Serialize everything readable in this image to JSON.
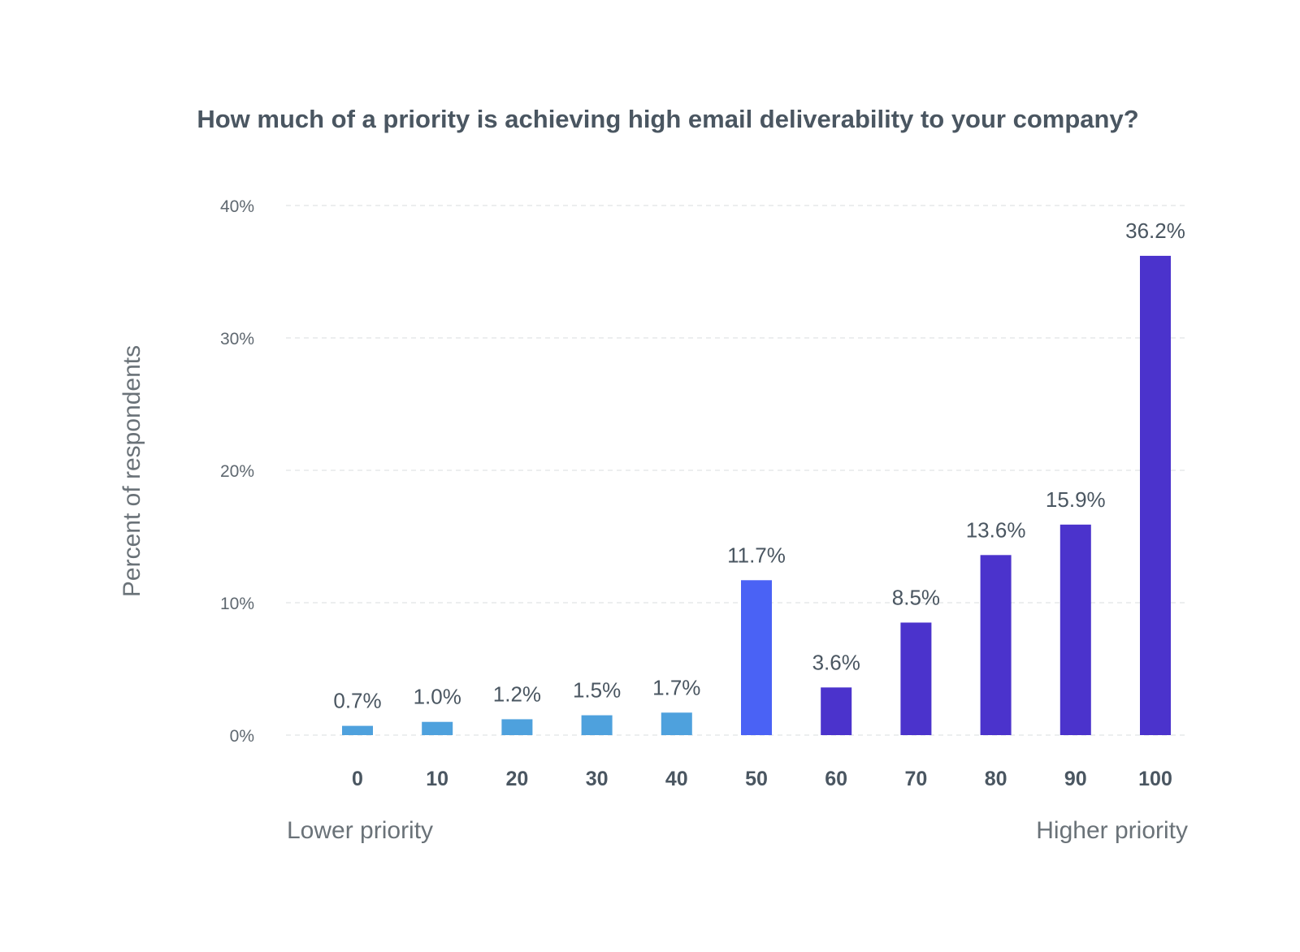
{
  "chart_data": {
    "type": "bar",
    "title": "How much of a priority is achieving high email deliverability to your company?",
    "ylabel": "Percent of respondents",
    "xlabel_left": "Lower priority",
    "xlabel_right": "Higher priority",
    "categories": [
      "0",
      "10",
      "20",
      "30",
      "40",
      "50",
      "60",
      "70",
      "80",
      "90",
      "100"
    ],
    "values": [
      0.7,
      1.0,
      1.2,
      1.5,
      1.7,
      11.7,
      3.6,
      8.5,
      13.6,
      15.9,
      36.2
    ],
    "data_labels": [
      "0.7%",
      "1.0%",
      "1.2%",
      "1.5%",
      "1.7%",
      "11.7%",
      "3.6%",
      "8.5%",
      "13.6%",
      "15.9%",
      "36.2%"
    ],
    "ylim": [
      0,
      40
    ],
    "yticks": [
      0,
      10,
      20,
      30,
      40
    ],
    "ytick_labels": [
      "0%",
      "10%",
      "20%",
      "30%",
      "40%"
    ],
    "grid": true,
    "colors": {
      "low": "#4ea1dd",
      "mid": "#4a62f5",
      "high": "#4b33cc"
    },
    "bar_color_groups": [
      "low",
      "low",
      "low",
      "low",
      "low",
      "mid",
      "high",
      "high",
      "high",
      "high",
      "high"
    ]
  }
}
